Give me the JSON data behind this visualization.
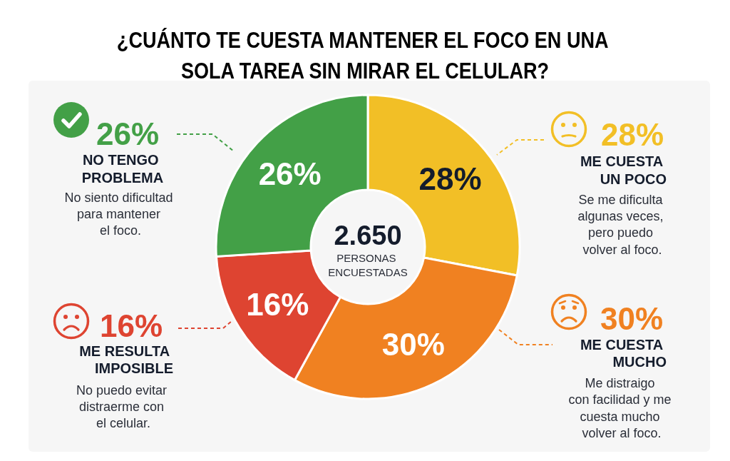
{
  "chart_data": {
    "type": "donut",
    "title": "¿CUÁNTO TE CUESTA MANTENER EL FOCO EN UNA SOLA TAREA SIN MIRAR EL CELULAR?",
    "categories": [
      "ME CUESTA UN POCO",
      "ME CUESTA MUCHO",
      "ME RESULTA IMPOSIBLE",
      "NO TENGO PROBLEMA"
    ],
    "values": [
      28,
      30,
      16,
      26
    ],
    "colors": [
      "#f2bf26",
      "#f08121",
      "#de4431",
      "#43a047"
    ],
    "value_labels": [
      "28%",
      "30%",
      "16%",
      "26%"
    ],
    "legend": "left right",
    "annotations": [
      "2.650",
      "PERSONAS\nENCUESTADAS",
      "Se me dificulta\nalgunas veces,\npero puedo\nvolver al foco.",
      "Me distraigo\ncon facilidad y me\ncuesta mucho\nvolver al foco.",
      "No puedo evitar\ndistraerme con\nel celular.",
      "No siento dificultad\npara mantener\nel foco."
    ]
  }
}
